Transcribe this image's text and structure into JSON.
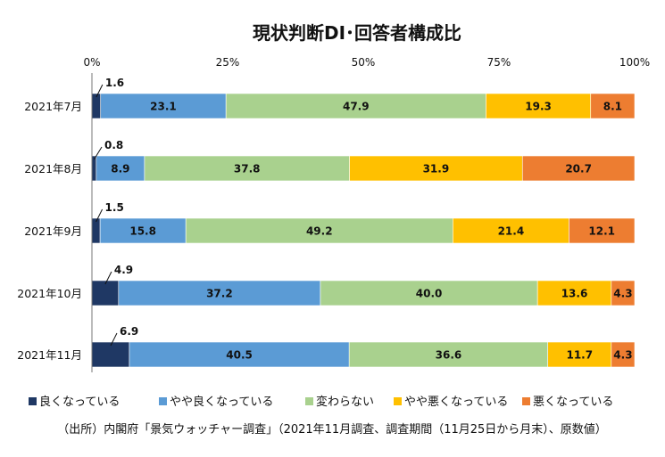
{
  "chart_data": {
    "type": "bar",
    "orientation": "horizontal",
    "stacked": true,
    "normalized": true,
    "title": "現状判断DI･回答者構成比",
    "xlim": [
      0,
      100
    ],
    "x_ticks": [
      "0%",
      "25%",
      "50%",
      "75%",
      "100%"
    ],
    "categories": [
      "2021年7月",
      "2021年8月",
      "2021年9月",
      "2021年10月",
      "2021年11月"
    ],
    "series": [
      {
        "name": "良くなっている",
        "color": "#1f3864",
        "values": [
          1.6,
          0.8,
          1.5,
          4.9,
          6.9
        ]
      },
      {
        "name": "やや良くなっている",
        "color": "#5b9bd5",
        "values": [
          23.1,
          8.9,
          15.8,
          37.2,
          40.5
        ]
      },
      {
        "name": "変わらない",
        "color": "#a9d18e",
        "values": [
          47.9,
          37.8,
          49.2,
          40.0,
          36.6
        ]
      },
      {
        "name": "やや悪くなっている",
        "color": "#ffc000",
        "values": [
          19.3,
          31.9,
          21.4,
          13.6,
          11.7
        ]
      },
      {
        "name": "悪くなっている",
        "color": "#ed7d31",
        "values": [
          8.1,
          20.7,
          12.1,
          4.3,
          4.3
        ]
      }
    ],
    "legend_position": "bottom",
    "grid": false,
    "note": "（出所）内閣府「景気ウォッチャー調査」（2021年11月調査、調査期間（11月25日から月末）、原数値）"
  }
}
